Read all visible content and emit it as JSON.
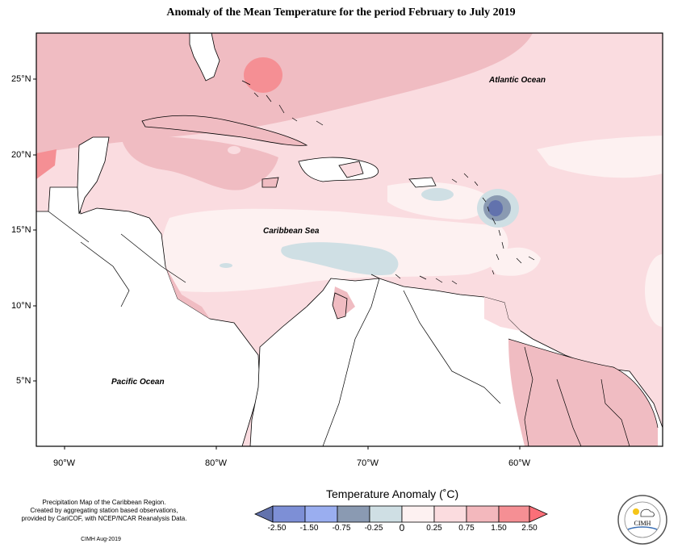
{
  "title": "Anomaly of the Mean Temperature for the period February to July 2019",
  "map": {
    "lat_ticks": [
      "25°N",
      "20°N",
      "15°N",
      "10°N",
      "5°N"
    ],
    "lon_ticks": [
      "90°W",
      "80°W",
      "70°W",
      "60°W"
    ],
    "labels": {
      "atlantic": "Atlantic Ocean",
      "caribbean": "Caribbean Sea",
      "pacific": "Pacific Ocean"
    }
  },
  "legend": {
    "title": "Temperature Anomaly (˚C)",
    "ticks": [
      "-2.50",
      "-1.50",
      "-0.75",
      "-0.25",
      "0",
      "0.25",
      "0.75",
      "1.50",
      "2.50"
    ],
    "colors": [
      "#6272ad",
      "#7d8fd6",
      "#9aaef0",
      "#8a9ab2",
      "#cfdfe4",
      "#fdf1f1",
      "#fbdcdf",
      "#f3b8bd",
      "#f58f94",
      "#fb6f78"
    ]
  },
  "credits": {
    "line1": "Precipitation Map of the Caribbean Region.",
    "line2": "Created by aggregating station based observations,",
    "line3": "provided by CariCOF, with NCEP/NCAR Reanalysis Data.",
    "date": "CIMH Aug-2019"
  },
  "logo": {
    "text": "CIMH"
  }
}
